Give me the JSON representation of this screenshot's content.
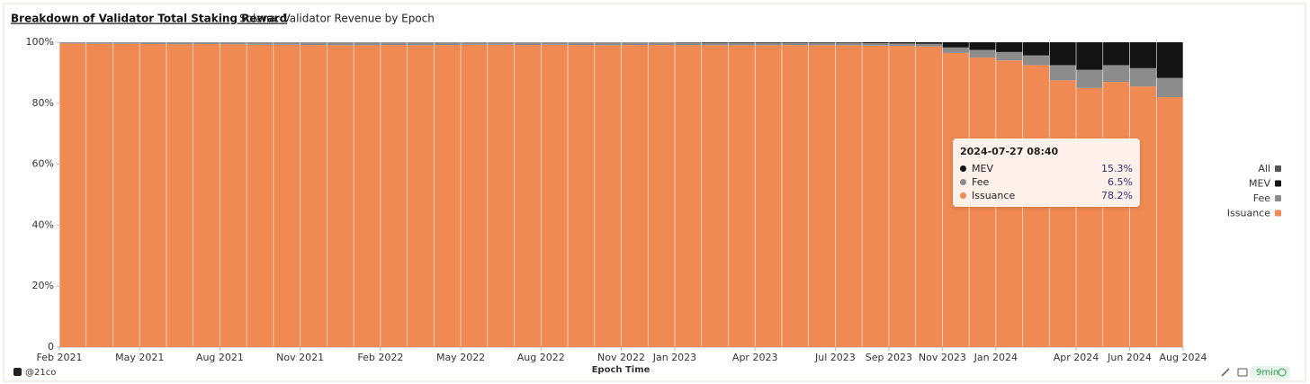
{
  "header": {
    "title": "Breakdown of Validator Total Staking Reward",
    "subtitle": "Solana: Validator Revenue by Epoch"
  },
  "footer": {
    "brand": "@21co",
    "age": "9min"
  },
  "chart_data": {
    "type": "bar",
    "stacked": true,
    "x_label": "Epoch Time",
    "x": [
      "2021-02",
      "2021-03",
      "2021-04",
      "2021-05",
      "2021-06",
      "2021-07",
      "2021-08",
      "2021-09",
      "2021-10",
      "2021-11",
      "2021-12",
      "2022-01",
      "2022-02",
      "2022-03",
      "2022-04",
      "2022-05",
      "2022-06",
      "2022-07",
      "2022-08",
      "2022-09",
      "2022-10",
      "2022-11",
      "2022-12",
      "2023-01",
      "2023-02",
      "2023-03",
      "2023-04",
      "2023-05",
      "2023-06",
      "2023-07",
      "2023-08",
      "2023-09",
      "2023-10",
      "2023-11",
      "2023-12",
      "2024-01",
      "2024-02",
      "2024-03",
      "2024-04",
      "2024-05",
      "2024-06",
      "2024-07"
    ],
    "series": [
      {
        "name": "MEV",
        "color": "#141414",
        "values": [
          0,
          0,
          0,
          0,
          0,
          0,
          0,
          0,
          0,
          0,
          0,
          0,
          0,
          0,
          0,
          0,
          0,
          0,
          0,
          0,
          0,
          0,
          0,
          0.1,
          0.2,
          0.2,
          0.2,
          0.2,
          0.2,
          0.2,
          0.3,
          0.4,
          0.5,
          1.7,
          2.5,
          3.2,
          4.3,
          7.5,
          9.0,
          7.5,
          8.5,
          11.7
        ]
      },
      {
        "name": "Fee",
        "color": "#8c8c8c",
        "values": [
          0.4,
          0.5,
          0.5,
          0.6,
          0.7,
          0.6,
          0.7,
          0.8,
          0.8,
          0.9,
          1.0,
          1.0,
          0.9,
          1.0,
          0.9,
          0.8,
          0.8,
          0.9,
          0.8,
          0.9,
          1.0,
          0.9,
          0.9,
          0.8,
          0.8,
          0.8,
          0.8,
          0.7,
          0.8,
          0.8,
          0.8,
          0.8,
          0.9,
          1.8,
          2.5,
          2.8,
          3.2,
          5.0,
          6.0,
          5.5,
          6.0,
          6.3
        ]
      },
      {
        "name": "Issuance",
        "color": "#f08a52",
        "values": [
          99.6,
          99.5,
          99.5,
          99.4,
          99.3,
          99.4,
          99.3,
          99.2,
          99.2,
          99.1,
          99.0,
          99.0,
          99.1,
          99.0,
          99.1,
          99.2,
          99.2,
          99.1,
          99.2,
          99.1,
          99.0,
          99.1,
          99.1,
          99.1,
          99.0,
          99.0,
          99.0,
          99.1,
          99.0,
          99.0,
          98.9,
          98.8,
          98.6,
          96.5,
          95.0,
          94.0,
          92.5,
          87.5,
          85.0,
          87.0,
          85.5,
          82.0
        ]
      }
    ],
    "xlim": [
      "2021-02",
      "2024-08"
    ],
    "xticks": [
      {
        "value": "2021-02",
        "label": "Feb 2021"
      },
      {
        "value": "2021-05",
        "label": "May 2021"
      },
      {
        "value": "2021-08",
        "label": "Aug 2021"
      },
      {
        "value": "2021-11",
        "label": "Nov 2021"
      },
      {
        "value": "2022-02",
        "label": "Feb 2022"
      },
      {
        "value": "2022-05",
        "label": "May 2022"
      },
      {
        "value": "2022-08",
        "label": "Aug 2022"
      },
      {
        "value": "2022-11",
        "label": "Nov 2022"
      },
      {
        "value": "2023-01",
        "label": "Jan 2023"
      },
      {
        "value": "2023-04",
        "label": "Apr 2023"
      },
      {
        "value": "2023-07",
        "label": "Jul 2023"
      },
      {
        "value": "2023-09",
        "label": "Sep 2023"
      },
      {
        "value": "2023-11",
        "label": "Nov 2023"
      },
      {
        "value": "2024-01",
        "label": "Jan 2024"
      },
      {
        "value": "2024-04",
        "label": "Apr 2024"
      },
      {
        "value": "2024-06",
        "label": "Jun 2024"
      },
      {
        "value": "2024-08",
        "label": "Aug 2024"
      }
    ],
    "ylim": [
      0,
      100
    ],
    "yticks": [
      0,
      {
        "value": 20,
        "label": "20%"
      },
      {
        "value": 40,
        "label": "40%"
      },
      {
        "value": 60,
        "label": "60%"
      },
      {
        "value": 80,
        "label": "80%"
      },
      {
        "value": 100,
        "label": "100%"
      }
    ],
    "legend": {
      "position": "right",
      "all_label": "All",
      "all_color": "#555555"
    },
    "tooltip": {
      "title": "2024-07-27 08:40",
      "items": [
        {
          "name": "MEV",
          "color": "#141414",
          "value": 15.3,
          "label": "15.3%"
        },
        {
          "name": "Fee",
          "color": "#8c8c8c",
          "value": 6.5,
          "label": "6.5%"
        },
        {
          "name": "Issuance",
          "color": "#f08a52",
          "value": 78.2,
          "label": "78.2%"
        }
      ]
    }
  }
}
